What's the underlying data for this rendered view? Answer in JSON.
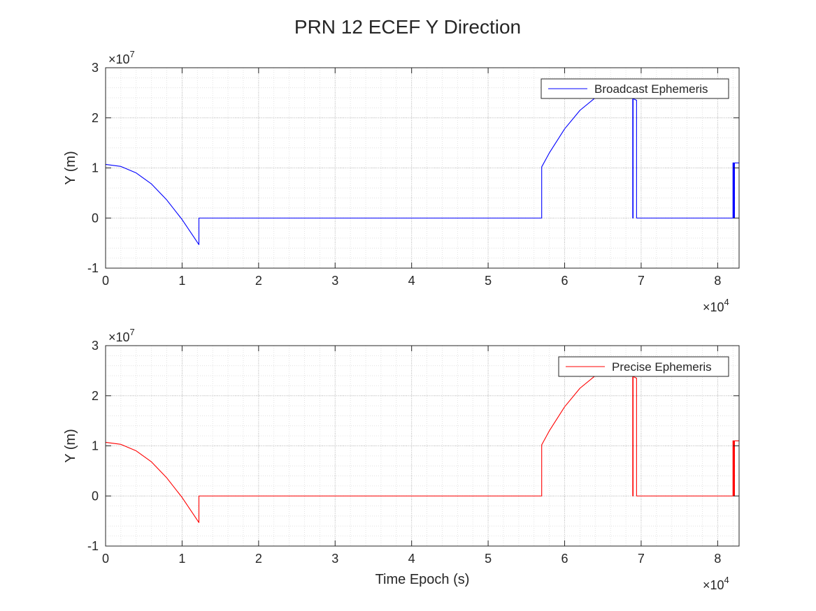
{
  "figure": {
    "title": "PRN 12 ECEF Y Direction"
  },
  "chart_data": [
    {
      "type": "line",
      "title": "",
      "xlabel": "",
      "ylabel": "Y (m)",
      "x_exponent_label": "×10",
      "x_exponent": "4",
      "y_exponent_label": "×10",
      "y_exponent": "7",
      "xlim": [
        0,
        82800
      ],
      "ylim": [
        -10000000,
        30000000
      ],
      "xticks": [
        0,
        10000,
        20000,
        30000,
        40000,
        50000,
        60000,
        70000,
        80000
      ],
      "xtick_labels": [
        "0",
        "1",
        "2",
        "3",
        "4",
        "5",
        "6",
        "7",
        "8"
      ],
      "yticks": [
        -10000000,
        0,
        10000000,
        20000000,
        30000000
      ],
      "ytick_labels": [
        "-1",
        "0",
        "1",
        "2",
        "3"
      ],
      "grid": true,
      "minor_grid": true,
      "legend_position": "top-right",
      "series": [
        {
          "name": "Broadcast Ephemeris",
          "color": "#0000ff",
          "x": [
            0,
            2000,
            4000,
            6000,
            8000,
            10000,
            12200,
            12200,
            57000,
            57000,
            58000,
            60000,
            62000,
            64000,
            65000,
            66000,
            68900,
            68900,
            68950,
            68950,
            69000,
            69400,
            69400,
            82000,
            82000,
            82100,
            82100,
            82200,
            82200,
            82300,
            82300,
            82800
          ],
          "y": [
            10700000,
            10300000,
            9000000,
            6800000,
            3600000,
            -300000,
            -5300000,
            0,
            0,
            10200000,
            13000000,
            17800000,
            21500000,
            24000000,
            24600000,
            24600000,
            24600000,
            0,
            0,
            23800000,
            23800000,
            23500000,
            0,
            0,
            11000000,
            11000000,
            0,
            0,
            11000000,
            11000000,
            11000000,
            11000000
          ]
        }
      ]
    },
    {
      "type": "line",
      "title": "",
      "xlabel": "Time Epoch (s)",
      "ylabel": "Y (m)",
      "x_exponent_label": "×10",
      "x_exponent": "4",
      "y_exponent_label": "×10",
      "y_exponent": "7",
      "xlim": [
        0,
        82800
      ],
      "ylim": [
        -10000000,
        30000000
      ],
      "xticks": [
        0,
        10000,
        20000,
        30000,
        40000,
        50000,
        60000,
        70000,
        80000
      ],
      "xtick_labels": [
        "0",
        "1",
        "2",
        "3",
        "4",
        "5",
        "6",
        "7",
        "8"
      ],
      "yticks": [
        -10000000,
        0,
        10000000,
        20000000,
        30000000
      ],
      "ytick_labels": [
        "-1",
        "0",
        "1",
        "2",
        "3"
      ],
      "grid": true,
      "minor_grid": true,
      "legend_position": "top-right",
      "series": [
        {
          "name": "Precise Ephemeris",
          "color": "#ff0000",
          "x": [
            0,
            2000,
            4000,
            6000,
            8000,
            10000,
            12200,
            12200,
            57000,
            57000,
            58000,
            60000,
            62000,
            64000,
            65000,
            66000,
            68900,
            68900,
            68950,
            68950,
            69000,
            69400,
            69400,
            82000,
            82000,
            82100,
            82100,
            82200,
            82200,
            82300,
            82300,
            82800
          ],
          "y": [
            10700000,
            10300000,
            9000000,
            6800000,
            3600000,
            -300000,
            -5300000,
            0,
            0,
            10200000,
            13000000,
            17800000,
            21500000,
            24000000,
            24600000,
            24600000,
            24600000,
            0,
            0,
            23800000,
            23800000,
            23500000,
            0,
            0,
            11000000,
            11000000,
            0,
            0,
            11000000,
            11000000,
            11000000,
            11000000
          ]
        }
      ]
    }
  ]
}
